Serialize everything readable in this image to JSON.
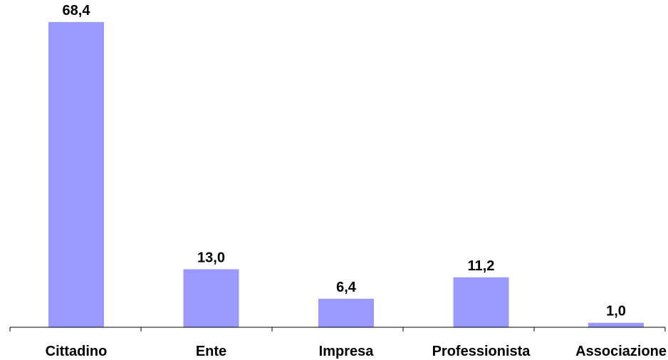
{
  "chart_data": {
    "type": "bar",
    "categories": [
      "Cittadino",
      "Ente",
      "Impresa",
      "Professionista",
      "Associazione"
    ],
    "values": [
      68.4,
      13.0,
      6.4,
      11.2,
      1.0
    ],
    "value_labels": [
      "68,4",
      "13,0",
      "6,4",
      "11,2",
      "1,0"
    ],
    "title": "",
    "xlabel": "",
    "ylabel": "",
    "ylim": [
      0,
      68.4
    ],
    "grid": false,
    "legend": "none",
    "colors": {
      "bar": "#9999ff",
      "axis": "#000000",
      "text": "#000000",
      "background": "#ffffff"
    }
  }
}
